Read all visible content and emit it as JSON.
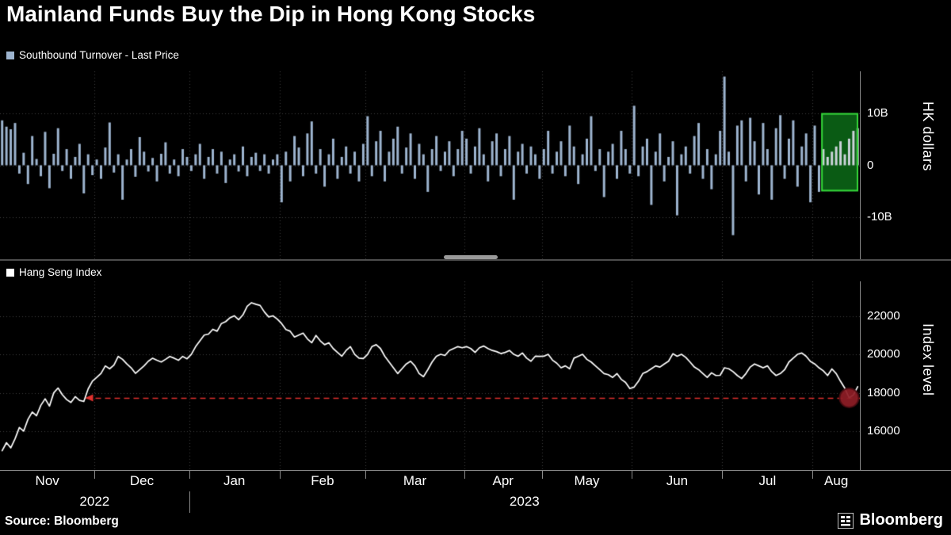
{
  "title": "Mainland Funds Buy the Dip in Hong Kong Stocks",
  "panels": {
    "top": {
      "legend": "Southbound Turnover - Last Price",
      "axis_title": "HK dollars"
    },
    "bottom": {
      "legend": "Hang Seng Index",
      "axis_title": "Index level"
    }
  },
  "x_axis": {
    "total_points": 200,
    "months": [
      {
        "label": "Nov",
        "start": 0
      },
      {
        "label": "Dec",
        "start": 22
      },
      {
        "label": "Jan",
        "start": 44
      },
      {
        "label": "Feb",
        "start": 65
      },
      {
        "label": "Mar",
        "start": 85
      },
      {
        "label": "Apr",
        "start": 108
      },
      {
        "label": "May",
        "start": 126
      },
      {
        "label": "Jun",
        "start": 147
      },
      {
        "label": "Jul",
        "start": 168
      },
      {
        "label": "Aug",
        "start": 189
      }
    ],
    "years": [
      {
        "label": "2022",
        "center_index": 22
      },
      {
        "label": "2023",
        "center_index": 122
      }
    ],
    "year_separator_index": 44
  },
  "footer": {
    "source": "Source: Bloomberg",
    "brand": "Bloomberg"
  },
  "chart_data": [
    {
      "type": "bar",
      "title": "Southbound Turnover - Last Price",
      "ylabel": "HK dollars",
      "unit": "billions of HK dollars (net daily southbound turnover)",
      "ylim": [
        -18,
        18
      ],
      "ytick_values": [
        10,
        0,
        -10
      ],
      "ytick_labels": [
        "10B",
        "0",
        "-10B"
      ],
      "bar_color": "#9db4cf",
      "bar_color_highlighted": "#ccd3da",
      "grid_color": "#3c3c3c",
      "highlight_box": {
        "start_index": 191,
        "end_index": 200,
        "y_top": 10,
        "y_bottom": -5,
        "fill": "#0c6b17",
        "border": "#35d43a"
      },
      "values": [
        8.6,
        7.4,
        6.9,
        8.1,
        -1.6,
        2.4,
        -3.6,
        5.6,
        1.2,
        -2.1,
        6.4,
        -4.4,
        2.2,
        7.1,
        -1.1,
        3.1,
        -2.6,
        1.6,
        4.1,
        -5.4,
        2.1,
        -1.9,
        1.1,
        -2.6,
        3.4,
        8.2,
        -1.4,
        2.1,
        -6.6,
        1.1,
        3.1,
        -2.2,
        5.4,
        2.6,
        -1.2,
        1.4,
        -3.1,
        2.2,
        4.4,
        -1.6,
        1.1,
        -2.1,
        3.1,
        1.6,
        -1.1,
        2.1,
        4.1,
        -2.6,
        1.6,
        3.1,
        -1.6,
        2.6,
        -3.4,
        1.1,
        2.1,
        -1.2,
        3.6,
        -2.1,
        1.6,
        2.4,
        -1.1,
        2.1,
        -1.6,
        1.1,
        2.1,
        -7.1,
        2.6,
        -3.1,
        5.6,
        3.4,
        -2.1,
        6.1,
        8.4,
        -1.6,
        3.1,
        -4.1,
        2.1,
        5.1,
        -2.6,
        1.6,
        3.6,
        -1.6,
        2.6,
        -3.1,
        4.1,
        9.4,
        -2.1,
        4.6,
        6.6,
        -3.1,
        2.6,
        5.1,
        7.4,
        -1.6,
        3.4,
        6.1,
        -2.6,
        4.1,
        2.1,
        -5.1,
        3.1,
        5.6,
        -1.1,
        2.6,
        4.6,
        -2.1,
        3.1,
        6.6,
        5.1,
        -1.6,
        3.6,
        7.1,
        2.1,
        -3.1,
        4.6,
        6.1,
        -2.1,
        3.1,
        5.6,
        -6.6,
        2.6,
        4.1,
        -1.6,
        3.6,
        2.1,
        -2.6,
        3.1,
        6.6,
        -1.6,
        2.6,
        4.6,
        -2.1,
        7.6,
        3.6,
        -3.6,
        2.1,
        5.1,
        9.4,
        -1.1,
        3.1,
        -6.1,
        2.6,
        4.1,
        -2.6,
        6.6,
        3.1,
        -1.6,
        11.4,
        -2.1,
        3.6,
        5.1,
        -7.6,
        2.6,
        6.1,
        -3.1,
        1.6,
        4.6,
        -9.6,
        2.1,
        3.6,
        -1.6,
        5.6,
        8.1,
        -2.6,
        3.1,
        -4.6,
        2.1,
        6.6,
        17.0,
        2.6,
        -13.4,
        7.6,
        8.6,
        -3.1,
        9.1,
        4.6,
        -5.6,
        8.1,
        3.1,
        -6.6,
        7.1,
        9.6,
        -2.6,
        5.1,
        8.6,
        -4.1,
        3.6,
        6.1,
        -7.1,
        7.6,
        -5.1,
        3.1,
        1.6,
        2.6,
        3.6,
        4.6,
        2.1,
        5.1,
        6.6,
        7.1
      ]
    },
    {
      "type": "line",
      "title": "Hang Seng Index",
      "ylabel": "Index level",
      "ylim": [
        14000,
        23800
      ],
      "ytick_values": [
        22000,
        20000,
        18000,
        16000
      ],
      "ytick_labels": [
        "22000",
        "20000",
        "18000",
        "16000"
      ],
      "line_color": "#ffffff",
      "grid_color": "#3c3c3c",
      "reference_line": {
        "value": 17750,
        "start_index": 20,
        "color": "#e0312e",
        "style": "dashed",
        "arrow": "left"
      },
      "marker": {
        "index": 197,
        "value": 17750,
        "radius": 12,
        "fill": "#8e1d26",
        "stroke": "#4a0d12"
      },
      "values": [
        15000,
        15420,
        15150,
        15620,
        16210,
        16020,
        16630,
        17010,
        16820,
        17360,
        17700,
        17320,
        18010,
        18260,
        17910,
        17660,
        17510,
        17810,
        17620,
        17560,
        18210,
        18620,
        18810,
        19020,
        19410,
        19260,
        19450,
        19900,
        19750,
        19510,
        19310,
        19020,
        19210,
        19410,
        19650,
        19810,
        19700,
        19610,
        19750,
        19900,
        19810,
        19700,
        19900,
        19780,
        20010,
        20410,
        20710,
        21010,
        21060,
        21310,
        21210,
        21610,
        21710,
        21910,
        22010,
        21810,
        22060,
        22510,
        22690,
        22610,
        22550,
        22210,
        21950,
        22010,
        21840,
        21610,
        21300,
        21210,
        20910,
        21010,
        21110,
        20810,
        20610,
        20990,
        20710,
        20510,
        20610,
        20310,
        20110,
        19910,
        20210,
        20410,
        20010,
        19810,
        19790,
        20010,
        20410,
        20510,
        20310,
        19910,
        19610,
        19310,
        19010,
        19260,
        19510,
        19650,
        19410,
        19010,
        18850,
        19210,
        19610,
        19910,
        20010,
        19950,
        20210,
        20310,
        20410,
        20350,
        20410,
        20310,
        20110,
        20350,
        20440,
        20310,
        20210,
        20150,
        20050,
        20110,
        20210,
        20010,
        19910,
        20080,
        19810,
        19650,
        19910,
        19900,
        19910,
        20010,
        19710,
        19550,
        19310,
        19410,
        19260,
        19810,
        19910,
        20010,
        19750,
        19610,
        19410,
        19210,
        19010,
        18950,
        18810,
        19010,
        18710,
        18550,
        18230,
        18310,
        18610,
        19010,
        19110,
        19260,
        19410,
        19350,
        19510,
        19650,
        20040,
        19910,
        20010,
        19850,
        19610,
        19350,
        19210,
        19010,
        18810,
        19050,
        18910,
        18920,
        19310,
        19260,
        19110,
        18910,
        18750,
        19010,
        19350,
        19510,
        19410,
        19310,
        19410,
        19110,
        18910,
        19010,
        19210,
        19610,
        19810,
        20010,
        20080,
        19910,
        19640,
        19510,
        19310,
        19150,
        18910,
        19250,
        19010,
        18610,
        18250,
        17750,
        17900,
        18330
      ]
    }
  ]
}
